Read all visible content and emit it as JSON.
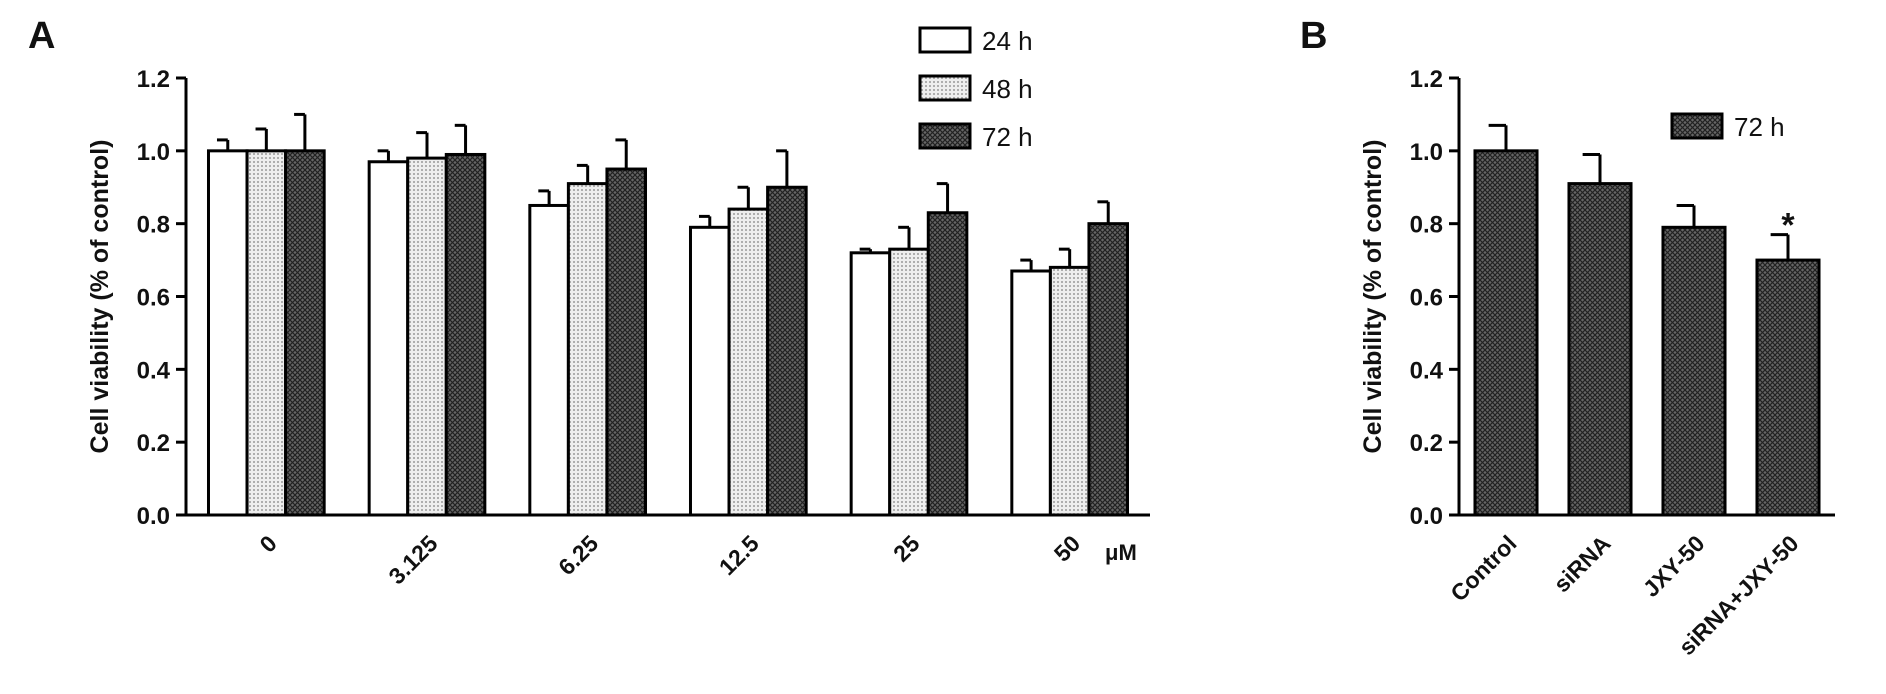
{
  "chart_data": [
    {
      "type": "bar",
      "panel_label": "A",
      "y_label": "Cell viability (% of control)",
      "x_unit": "μM",
      "categories": [
        "0",
        "3.125",
        "6.25",
        "12.5",
        "25",
        "50"
      ],
      "series": [
        {
          "name": "24 h",
          "color": "#ffffff",
          "values": [
            1.0,
            0.97,
            0.85,
            0.79,
            0.72,
            0.67
          ],
          "errors": [
            0.03,
            0.03,
            0.04,
            0.03,
            0.01,
            0.03
          ]
        },
        {
          "name": "48 h",
          "color": "#d9d9d9",
          "values": [
            1.0,
            0.98,
            0.91,
            0.84,
            0.73,
            0.68
          ],
          "errors": [
            0.06,
            0.07,
            0.05,
            0.06,
            0.06,
            0.05
          ]
        },
        {
          "name": "72 h",
          "color": "#4a4a4a",
          "values": [
            1.0,
            0.99,
            0.95,
            0.9,
            0.83,
            0.8
          ],
          "errors": [
            0.1,
            0.08,
            0.08,
            0.1,
            0.08,
            0.06
          ]
        }
      ],
      "ylim": [
        0,
        1.2
      ],
      "yticks": [
        {
          "value": 0,
          "label": "0.0"
        },
        0.2,
        0.4,
        0.6,
        0.8,
        {
          "value": 1,
          "label": "1.0"
        },
        1.2
      ],
      "legend": "top-right"
    },
    {
      "type": "bar",
      "panel_label": "B",
      "y_label": "Cell viability (% of control)",
      "categories": [
        "Control",
        "siRNA",
        "JXY-50",
        "siRNA+JXY-50"
      ],
      "series": [
        {
          "name": "72 h",
          "color": "#4a4a4a",
          "values": [
            1.0,
            0.91,
            0.79,
            0.7
          ],
          "errors": [
            0.07,
            0.08,
            0.06,
            0.07
          ]
        }
      ],
      "annotations": [
        {
          "text": "*",
          "category": "siRNA+JXY-50"
        }
      ],
      "ylim": [
        0,
        1.2
      ],
      "yticks": [
        {
          "value": 0,
          "label": "0.0"
        },
        0.2,
        0.4,
        0.6,
        0.8,
        {
          "value": 1,
          "label": "1.0"
        },
        1.2
      ],
      "legend": "top-right"
    }
  ]
}
